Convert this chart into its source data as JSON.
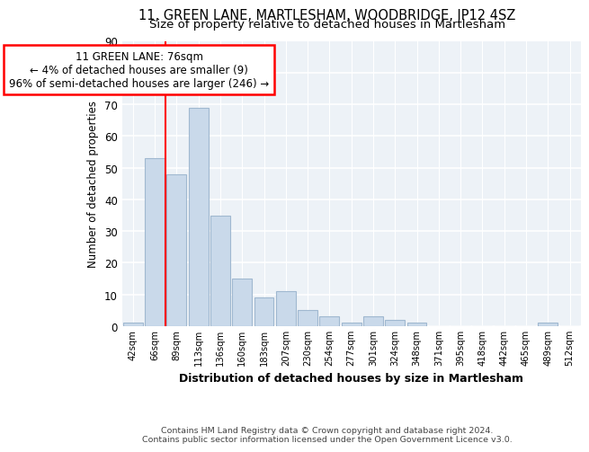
{
  "title1": "11, GREEN LANE, MARTLESHAM, WOODBRIDGE, IP12 4SZ",
  "title2": "Size of property relative to detached houses in Martlesham",
  "xlabel": "Distribution of detached houses by size in Martlesham",
  "ylabel": "Number of detached properties",
  "bar_labels": [
    "42sqm",
    "66sqm",
    "89sqm",
    "113sqm",
    "136sqm",
    "160sqm",
    "183sqm",
    "207sqm",
    "230sqm",
    "254sqm",
    "277sqm",
    "301sqm",
    "324sqm",
    "348sqm",
    "371sqm",
    "395sqm",
    "418sqm",
    "442sqm",
    "465sqm",
    "489sqm",
    "512sqm"
  ],
  "bar_values": [
    1,
    53,
    48,
    69,
    35,
    15,
    9,
    11,
    5,
    3,
    1,
    3,
    2,
    1,
    0,
    0,
    0,
    0,
    0,
    1,
    0
  ],
  "bar_color": "#c9d9ea",
  "bar_edgecolor": "#a0b8d0",
  "vline_x": 1.5,
  "vline_color": "red",
  "annotation_text": "11 GREEN LANE: 76sqm\n← 4% of detached houses are smaller (9)\n96% of semi-detached houses are larger (246) →",
  "annotation_box_color": "white",
  "annotation_box_edgecolor": "red",
  "ylim": [
    0,
    90
  ],
  "yticks": [
    0,
    10,
    20,
    30,
    40,
    50,
    60,
    70,
    80,
    90
  ],
  "bg_color": "#edf2f7",
  "grid_color": "white",
  "footer1": "Contains HM Land Registry data © Crown copyright and database right 2024.",
  "footer2": "Contains public sector information licensed under the Open Government Licence v3.0."
}
